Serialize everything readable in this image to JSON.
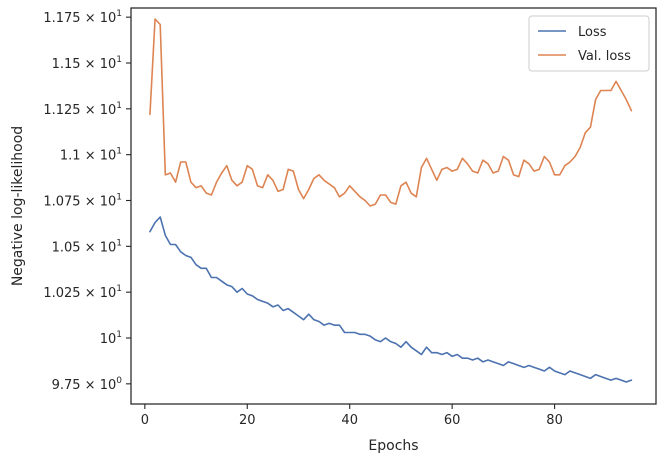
{
  "chart_data": {
    "type": "line",
    "xlabel": "Epochs",
    "ylabel": "Negative log-likelihood",
    "xlim": [
      -2.7,
      99.8
    ],
    "ylim": [
      9.64,
      11.8
    ],
    "x_ticks": [
      {
        "value": 0,
        "label": "0"
      },
      {
        "value": 20,
        "label": "20"
      },
      {
        "value": 40,
        "label": "40"
      },
      {
        "value": 60,
        "label": "60"
      },
      {
        "value": 80,
        "label": "80"
      }
    ],
    "y_ticks": [
      {
        "value": 9.75,
        "mant": "9.75",
        "exp": "0"
      },
      {
        "value": 10.0,
        "mant": "",
        "exp": "1"
      },
      {
        "value": 10.25,
        "mant": "1.025",
        "exp": "1"
      },
      {
        "value": 10.5,
        "mant": "1.05",
        "exp": "1"
      },
      {
        "value": 10.75,
        "mant": "1.075",
        "exp": "1"
      },
      {
        "value": 11.0,
        "mant": "1.1",
        "exp": "1"
      },
      {
        "value": 11.25,
        "mant": "1.125",
        "exp": "1"
      },
      {
        "value": 11.5,
        "mant": "1.15",
        "exp": "1"
      },
      {
        "value": 11.75,
        "mant": "1.175",
        "exp": "1"
      }
    ],
    "legend_position": "top-right",
    "grid": false,
    "x": [
      1,
      2,
      3,
      4,
      5,
      6,
      7,
      8,
      9,
      10,
      11,
      12,
      13,
      14,
      15,
      16,
      17,
      18,
      19,
      20,
      21,
      22,
      23,
      24,
      25,
      26,
      27,
      28,
      29,
      30,
      31,
      32,
      33,
      34,
      35,
      36,
      37,
      38,
      39,
      40,
      41,
      42,
      43,
      44,
      45,
      46,
      47,
      48,
      49,
      50,
      51,
      52,
      53,
      54,
      55,
      56,
      57,
      58,
      59,
      60,
      61,
      62,
      63,
      64,
      65,
      66,
      67,
      68,
      69,
      70,
      71,
      72,
      73,
      74,
      75,
      76,
      77,
      78,
      79,
      80,
      81,
      82,
      83,
      84,
      85,
      86,
      87,
      88,
      89,
      90,
      91,
      92,
      93,
      94,
      95
    ],
    "series": [
      {
        "name": "Loss",
        "color": "#4c72b0",
        "values": [
          10.58,
          10.63,
          10.66,
          10.56,
          10.51,
          10.51,
          10.47,
          10.45,
          10.44,
          10.4,
          10.38,
          10.38,
          10.33,
          10.33,
          10.31,
          10.29,
          10.28,
          10.25,
          10.27,
          10.24,
          10.23,
          10.21,
          10.2,
          10.19,
          10.17,
          10.18,
          10.15,
          10.16,
          10.14,
          10.12,
          10.1,
          10.13,
          10.1,
          10.09,
          10.07,
          10.08,
          10.07,
          10.07,
          10.03,
          10.03,
          10.03,
          10.02,
          10.02,
          10.01,
          9.99,
          9.98,
          10.0,
          9.98,
          9.97,
          9.95,
          9.98,
          9.95,
          9.93,
          9.91,
          9.95,
          9.92,
          9.92,
          9.91,
          9.92,
          9.9,
          9.91,
          9.89,
          9.89,
          9.88,
          9.89,
          9.87,
          9.88,
          9.87,
          9.86,
          9.85,
          9.87,
          9.86,
          9.85,
          9.84,
          9.85,
          9.84,
          9.83,
          9.82,
          9.84,
          9.82,
          9.81,
          9.8,
          9.82,
          9.81,
          9.8,
          9.79,
          9.78,
          9.8,
          9.79,
          9.78,
          9.77,
          9.78,
          9.77,
          9.76,
          9.77
        ]
      },
      {
        "name": "Val. loss",
        "color": "#dd8452",
        "values": [
          11.22,
          11.74,
          11.71,
          10.89,
          10.9,
          10.85,
          10.96,
          10.96,
          10.85,
          10.82,
          10.83,
          10.79,
          10.78,
          10.85,
          10.9,
          10.94,
          10.86,
          10.83,
          10.85,
          10.94,
          10.92,
          10.83,
          10.82,
          10.89,
          10.86,
          10.8,
          10.81,
          10.92,
          10.91,
          10.81,
          10.76,
          10.81,
          10.87,
          10.89,
          10.86,
          10.84,
          10.82,
          10.77,
          10.79,
          10.83,
          10.8,
          10.77,
          10.75,
          10.72,
          10.73,
          10.78,
          10.78,
          10.74,
          10.73,
          10.83,
          10.85,
          10.79,
          10.77,
          10.93,
          10.98,
          10.92,
          10.86,
          10.92,
          10.93,
          10.91,
          10.92,
          10.98,
          10.95,
          10.91,
          10.9,
          10.97,
          10.95,
          10.9,
          10.91,
          10.99,
          10.97,
          10.89,
          10.88,
          10.97,
          10.95,
          10.91,
          10.92,
          10.99,
          10.96,
          10.89,
          10.89,
          10.94,
          10.96,
          10.99,
          11.04,
          11.12,
          11.15,
          11.3,
          11.35,
          11.35,
          11.35,
          11.4,
          11.35,
          11.3,
          11.24
        ]
      }
    ]
  }
}
